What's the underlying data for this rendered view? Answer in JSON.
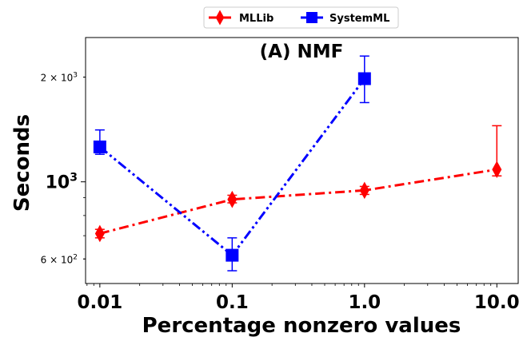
{
  "chart_data": {
    "type": "line",
    "title": "(A) NMF",
    "xlabel": "Percentage nonzero values",
    "ylabel": "Seconds",
    "xscale": "log",
    "yscale": "log",
    "x": [
      0.01,
      0.1,
      1.0,
      10.0
    ],
    "x_tick_labels": [
      "0.01",
      "0.1",
      "1.0",
      "10.0"
    ],
    "xlim": [
      0.0078,
      14.5
    ],
    "ylim": [
      510,
      2600
    ],
    "y_ticks": [
      {
        "value": 600,
        "base": "6 × 10",
        "exp": "2"
      },
      {
        "value": 1000,
        "base": "10",
        "exp": "3"
      },
      {
        "value": 2000,
        "base": "2 × 10",
        "exp": "3"
      }
    ],
    "legend_position": "top-center, outside plot",
    "series": [
      {
        "name": "MLLib",
        "color": "#ff0000",
        "marker": "diamond",
        "linestyle": "dash-dot",
        "values": [
          710,
          890,
          945,
          1085
        ],
        "err_low": [
          690,
          870,
          920,
          1040
        ],
        "err_high": [
          730,
          915,
          970,
          1450
        ]
      },
      {
        "name": "SystemML",
        "color": "#0000ff",
        "marker": "square",
        "linestyle": "dash-dot-dot",
        "values": [
          1260,
          615,
          1980,
          null
        ],
        "err_low": [
          1200,
          555,
          1690,
          null
        ],
        "err_high": [
          1410,
          690,
          2300,
          null
        ]
      }
    ]
  }
}
